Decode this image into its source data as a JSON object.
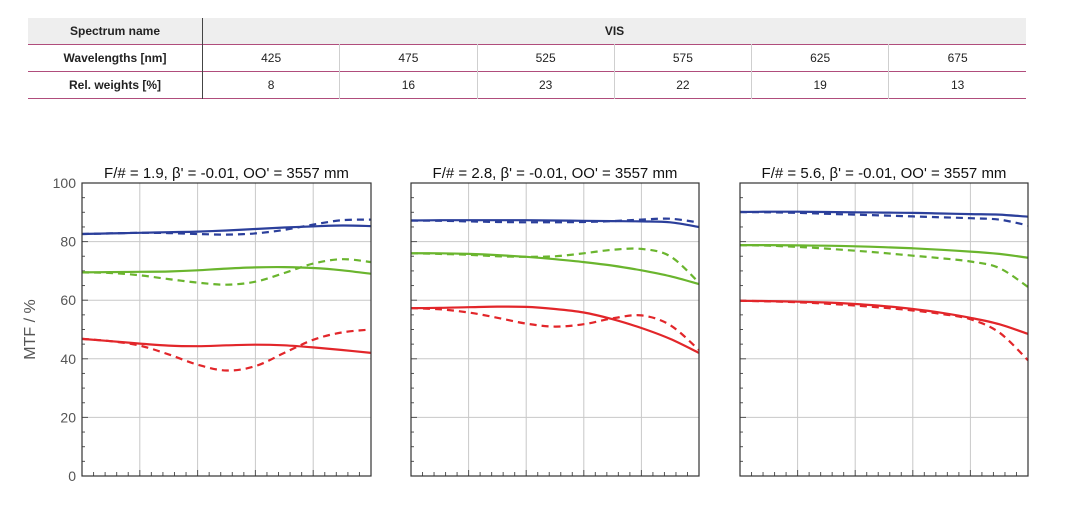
{
  "table": {
    "spectrum_label": "Spectrum name",
    "spectrum_value": "VIS",
    "wavelengths_label": "Wavelengths [nm]",
    "wavelengths": [
      "425",
      "475",
      "525",
      "575",
      "625",
      "675"
    ],
    "weights_label": "Rel. weights [%]",
    "weights": [
      "8",
      "16",
      "23",
      "22",
      "19",
      "13"
    ]
  },
  "colors": {
    "blue": "#2b3f9b",
    "green": "#6ab52e",
    "red": "#e2262a"
  },
  "chart_data": [
    {
      "type": "line",
      "title": "F/# = 1.9, β' = -0.01, OO' = 3557 mm",
      "ylabel": "MTF / %",
      "ylim": [
        0,
        100
      ],
      "yticks": [
        "0",
        "20",
        "40",
        "60",
        "80",
        "100"
      ],
      "xlim": [
        0,
        1
      ],
      "grid": true,
      "series": [
        {
          "color": "blue",
          "dash": false,
          "x": [
            0,
            0.1,
            0.2,
            0.3,
            0.4,
            0.5,
            0.6,
            0.7,
            0.8,
            0.9,
            1.0
          ],
          "y": [
            82.6,
            82.8,
            83.0,
            83.2,
            83.4,
            83.8,
            84.3,
            84.8,
            85.2,
            85.5,
            85.3
          ]
        },
        {
          "color": "blue",
          "dash": true,
          "x": [
            0,
            0.1,
            0.2,
            0.3,
            0.4,
            0.5,
            0.6,
            0.7,
            0.8,
            0.9,
            1.0
          ],
          "y": [
            82.6,
            82.8,
            83.0,
            82.9,
            82.6,
            82.4,
            82.8,
            84.0,
            85.8,
            87.3,
            87.5
          ]
        },
        {
          "color": "green",
          "dash": false,
          "x": [
            0,
            0.1,
            0.2,
            0.3,
            0.4,
            0.5,
            0.6,
            0.7,
            0.8,
            0.9,
            1.0
          ],
          "y": [
            69.5,
            69.6,
            69.7,
            69.8,
            70.2,
            70.8,
            71.2,
            71.3,
            71.0,
            70.2,
            69.0
          ]
        },
        {
          "color": "green",
          "dash": true,
          "x": [
            0,
            0.1,
            0.2,
            0.3,
            0.4,
            0.5,
            0.6,
            0.7,
            0.8,
            0.9,
            1.0
          ],
          "y": [
            69.5,
            69.3,
            68.5,
            67.2,
            66.0,
            65.3,
            66.3,
            69.3,
            72.5,
            74.0,
            73.0
          ]
        },
        {
          "color": "red",
          "dash": false,
          "x": [
            0,
            0.1,
            0.2,
            0.3,
            0.4,
            0.5,
            0.6,
            0.7,
            0.8,
            0.9,
            1.0
          ],
          "y": [
            46.8,
            46.0,
            45.2,
            44.5,
            44.3,
            44.6,
            44.8,
            44.6,
            43.9,
            43.0,
            42.0
          ]
        },
        {
          "color": "red",
          "dash": true,
          "x": [
            0,
            0.1,
            0.2,
            0.3,
            0.4,
            0.5,
            0.6,
            0.7,
            0.8,
            0.9,
            1.0
          ],
          "y": [
            46.8,
            46.0,
            44.5,
            41.5,
            38.0,
            36.0,
            37.5,
            42.0,
            46.5,
            49.0,
            50.0
          ]
        }
      ]
    },
    {
      "type": "line",
      "title": "F/# = 2.8, β' = -0.01, OO' = 3557 mm",
      "ylabel": "",
      "ylim": [
        0,
        100
      ],
      "xlim": [
        0,
        1
      ],
      "grid": true,
      "series": [
        {
          "color": "blue",
          "dash": false,
          "x": [
            0,
            0.1,
            0.2,
            0.3,
            0.4,
            0.5,
            0.6,
            0.7,
            0.8,
            0.9,
            1.0
          ],
          "y": [
            87.2,
            87.3,
            87.3,
            87.3,
            87.3,
            87.2,
            87.1,
            87.0,
            86.9,
            86.6,
            85.0
          ]
        },
        {
          "color": "blue",
          "dash": true,
          "x": [
            0,
            0.1,
            0.2,
            0.3,
            0.4,
            0.5,
            0.6,
            0.7,
            0.8,
            0.9,
            1.0
          ],
          "y": [
            87.2,
            87.1,
            86.9,
            86.7,
            86.6,
            86.6,
            86.7,
            87.0,
            87.5,
            87.8,
            86.5
          ]
        },
        {
          "color": "green",
          "dash": false,
          "x": [
            0,
            0.1,
            0.2,
            0.3,
            0.4,
            0.5,
            0.6,
            0.7,
            0.8,
            0.9,
            1.0
          ],
          "y": [
            76.0,
            76.0,
            75.8,
            75.4,
            74.8,
            74.0,
            73.0,
            71.8,
            70.2,
            68.2,
            65.5
          ]
        },
        {
          "color": "green",
          "dash": true,
          "x": [
            0,
            0.1,
            0.2,
            0.3,
            0.4,
            0.5,
            0.6,
            0.7,
            0.8,
            0.9,
            1.0
          ],
          "y": [
            76.0,
            75.8,
            75.5,
            75.0,
            74.8,
            75.0,
            76.0,
            77.2,
            77.5,
            75.0,
            66.0
          ]
        },
        {
          "color": "red",
          "dash": false,
          "x": [
            0,
            0.1,
            0.2,
            0.3,
            0.4,
            0.5,
            0.6,
            0.7,
            0.8,
            0.9,
            1.0
          ],
          "y": [
            57.3,
            57.4,
            57.6,
            57.8,
            57.7,
            57.0,
            55.8,
            53.5,
            50.5,
            46.8,
            42.0
          ]
        },
        {
          "color": "red",
          "dash": true,
          "x": [
            0,
            0.1,
            0.2,
            0.3,
            0.4,
            0.5,
            0.6,
            0.7,
            0.8,
            0.9,
            1.0
          ],
          "y": [
            57.3,
            56.9,
            55.8,
            54.0,
            52.0,
            51.0,
            51.8,
            53.8,
            54.8,
            51.5,
            43.0
          ]
        }
      ]
    },
    {
      "type": "line",
      "title": "F/# = 5.6, β' = -0.01, OO' = 3557 mm",
      "ylabel": "",
      "ylim": [
        0,
        100
      ],
      "xlim": [
        0,
        1
      ],
      "grid": true,
      "series": [
        {
          "color": "blue",
          "dash": false,
          "x": [
            0,
            0.1,
            0.2,
            0.3,
            0.4,
            0.5,
            0.6,
            0.7,
            0.8,
            0.9,
            1.0
          ],
          "y": [
            90.1,
            90.2,
            90.2,
            90.1,
            90.0,
            89.9,
            89.8,
            89.6,
            89.4,
            89.2,
            88.5
          ]
        },
        {
          "color": "blue",
          "dash": true,
          "x": [
            0,
            0.1,
            0.2,
            0.3,
            0.4,
            0.5,
            0.6,
            0.7,
            0.8,
            0.9,
            1.0
          ],
          "y": [
            90.1,
            90.0,
            89.8,
            89.5,
            89.2,
            88.9,
            88.6,
            88.3,
            88.0,
            87.5,
            85.5
          ]
        },
        {
          "color": "green",
          "dash": false,
          "x": [
            0,
            0.1,
            0.2,
            0.3,
            0.4,
            0.5,
            0.6,
            0.7,
            0.8,
            0.9,
            1.0
          ],
          "y": [
            78.8,
            78.8,
            78.7,
            78.6,
            78.4,
            78.1,
            77.7,
            77.2,
            76.6,
            75.8,
            74.5
          ]
        },
        {
          "color": "green",
          "dash": true,
          "x": [
            0,
            0.1,
            0.2,
            0.3,
            0.4,
            0.5,
            0.6,
            0.7,
            0.8,
            0.9,
            1.0
          ],
          "y": [
            78.8,
            78.6,
            78.2,
            77.6,
            76.9,
            76.1,
            75.2,
            74.3,
            73.2,
            71.0,
            64.5
          ]
        },
        {
          "color": "red",
          "dash": false,
          "x": [
            0,
            0.1,
            0.2,
            0.3,
            0.4,
            0.5,
            0.6,
            0.7,
            0.8,
            0.9,
            1.0
          ],
          "y": [
            59.8,
            59.7,
            59.5,
            59.2,
            58.7,
            58.0,
            57.0,
            55.7,
            54.0,
            51.8,
            48.5
          ]
        },
        {
          "color": "red",
          "dash": true,
          "x": [
            0,
            0.1,
            0.2,
            0.3,
            0.4,
            0.5,
            0.6,
            0.7,
            0.8,
            0.9,
            1.0
          ],
          "y": [
            59.8,
            59.6,
            59.3,
            58.8,
            58.2,
            57.4,
            56.5,
            55.3,
            53.5,
            49.0,
            39.5
          ]
        }
      ]
    }
  ]
}
